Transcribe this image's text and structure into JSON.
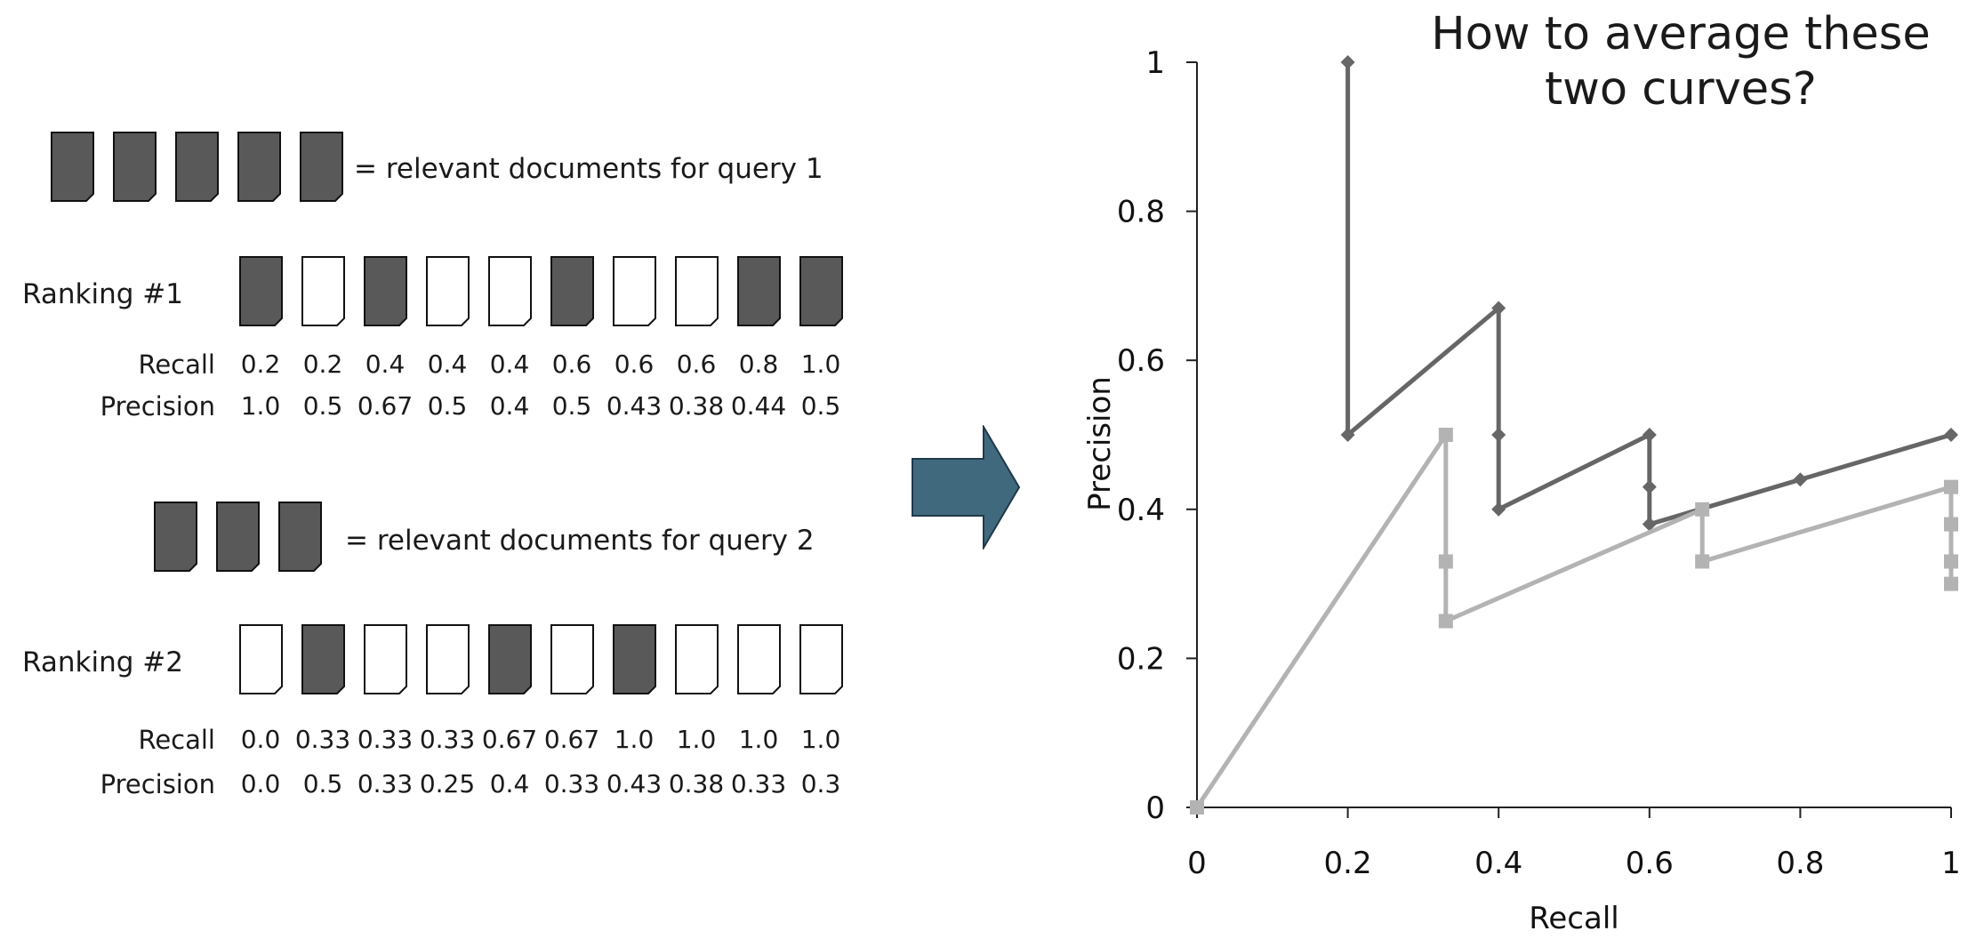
{
  "query1": {
    "legend_text": "= relevant documents for query 1",
    "relevant_count": 5,
    "ranking_label": "Ranking #1",
    "relevant_flags": [
      true,
      false,
      true,
      false,
      false,
      true,
      false,
      false,
      true,
      true
    ],
    "recall_label": "Recall",
    "precision_label": "Precision",
    "recall": [
      "0.2",
      "0.2",
      "0.4",
      "0.4",
      "0.4",
      "0.6",
      "0.6",
      "0.6",
      "0.8",
      "1.0"
    ],
    "precision": [
      "1.0",
      "0.5",
      "0.67",
      "0.5",
      "0.4",
      "0.5",
      "0.43",
      "0.38",
      "0.44",
      "0.5"
    ]
  },
  "query2": {
    "legend_text": "= relevant documents for query 2",
    "relevant_count": 3,
    "ranking_label": "Ranking #2",
    "relevant_flags": [
      false,
      true,
      false,
      false,
      true,
      false,
      true,
      false,
      false,
      false
    ],
    "recall_label": "Recall",
    "precision_label": "Precision",
    "recall": [
      "0.0",
      "0.33",
      "0.33",
      "0.33",
      "0.67",
      "0.67",
      "1.0",
      "1.0",
      "1.0",
      "1.0"
    ],
    "precision": [
      "0.0",
      "0.5",
      "0.33",
      "0.25",
      "0.4",
      "0.33",
      "0.43",
      "0.38",
      "0.33",
      "0.3"
    ]
  },
  "colors": {
    "relevant_doc": "#595959",
    "arrow_fill": "#41697e",
    "series1": "#666666",
    "series2": "#b3b3b3"
  },
  "chart_data": {
    "type": "line",
    "title": "How to average these two curves?",
    "xlabel": "Recall",
    "ylabel": "Precision",
    "xlim": [
      0,
      1
    ],
    "ylim": [
      0,
      1
    ],
    "xticks": [
      "0",
      "0.2",
      "0.4",
      "0.6",
      "0.8",
      "1"
    ],
    "yticks": [
      "0",
      "0.2",
      "0.4",
      "0.6",
      "0.8",
      "1"
    ],
    "series": [
      {
        "marker": "diamond",
        "color": "#666666",
        "x": [
          0.2,
          0.2,
          0.4,
          0.4,
          0.4,
          0.6,
          0.6,
          0.6,
          0.8,
          1.0
        ],
        "y": [
          1.0,
          0.5,
          0.67,
          0.5,
          0.4,
          0.5,
          0.43,
          0.38,
          0.44,
          0.5
        ]
      },
      {
        "marker": "square",
        "color": "#b3b3b3",
        "x": [
          0.0,
          0.33,
          0.33,
          0.33,
          0.67,
          0.67,
          1.0,
          1.0,
          1.0,
          1.0
        ],
        "y": [
          0.0,
          0.5,
          0.33,
          0.25,
          0.4,
          0.33,
          0.43,
          0.38,
          0.33,
          0.3
        ]
      }
    ]
  }
}
